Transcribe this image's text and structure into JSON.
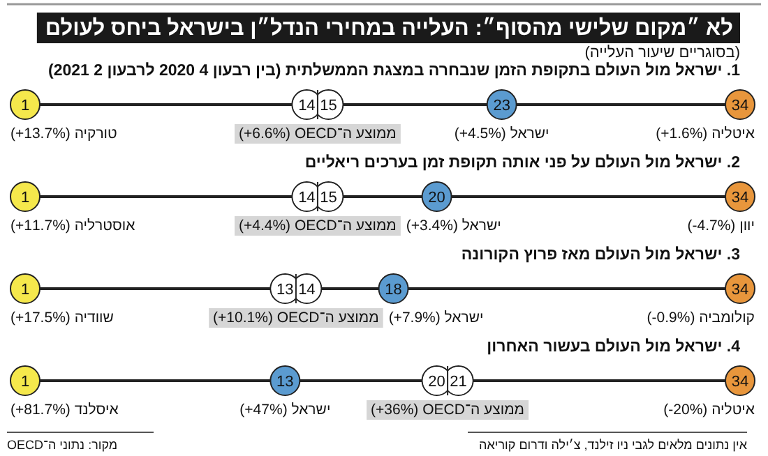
{
  "chart_data": [
    {
      "type": "other",
      "data_labels": true,
      "title": "1. ישראל מול העולם בתקופת הזמן שנבחרה במצגת הממשלתית (בין רבעון 4 2020 לרבעון 2 2021)",
      "categories": [
        "טורקיה (+13.7%)",
        "ממוצע ה־OECD (+6.6%)",
        null,
        "ישראל (+4.5%)",
        "איטליה (+1.6%)"
      ],
      "values": [
        1,
        14,
        15,
        23,
        34
      ],
      "colors": [
        "#f5e84c",
        "#ffffff",
        "#ffffff",
        "#5b9bd0",
        "#e8963c"
      ],
      "annotations": [
        "לא ״מקום שלישי מהסוף״: העלייה במחירי הנדל״ן בישראל ביחס לעולם",
        "(בסוגריים שיעור העלייה)"
      ]
    },
    {
      "type": "other",
      "data_labels": true,
      "title": "2. ישראל מול העולם על פני אותה תקופת זמן בערכים ריאליים",
      "categories": [
        "אוסטרליה (+11.7%)",
        "ממוצע ה־OECD (+4.4%)",
        null,
        "ישראל (+3.4%)",
        "יוון (-4.7%)"
      ],
      "values": [
        1,
        14,
        15,
        20,
        34
      ],
      "colors": [
        "#f5e84c",
        "#ffffff",
        "#ffffff",
        "#5b9bd0",
        "#e8963c"
      ]
    },
    {
      "type": "other",
      "data_labels": true,
      "title": "3. ישראל מול העולם מאז פרוץ הקורונה",
      "categories": [
        "שוודיה (+17.5%)",
        "ממוצע ה־OECD (+10.1%)",
        null,
        "ישראל (+7.9%)",
        "קולומביה (-0.9%)"
      ],
      "values": [
        1,
        13,
        14,
        18,
        34
      ],
      "colors": [
        "#f5e84c",
        "#ffffff",
        "#ffffff",
        "#5b9bd0",
        "#e8963c"
      ]
    },
    {
      "type": "other",
      "data_labels": true,
      "title": "4. ישראל מול העולם בעשור האחרון",
      "categories": [
        "איסלנד (+81.7%)",
        "ישראל (+47%)",
        "ממוצע ה־OECD (+36%)",
        null,
        "איטליה (-20%)"
      ],
      "values": [
        1,
        13,
        20,
        21,
        34
      ],
      "colors": [
        "#f5e84c",
        "#5b9bd0",
        "#ffffff",
        "#ffffff",
        "#e8963c"
      ],
      "annotations": [
        "מקור: נתוני ה־OECD",
        "אין נתונים מלאים לגבי ניו זילנד, צ׳ילה ודרום קוריאה"
      ]
    }
  ]
}
